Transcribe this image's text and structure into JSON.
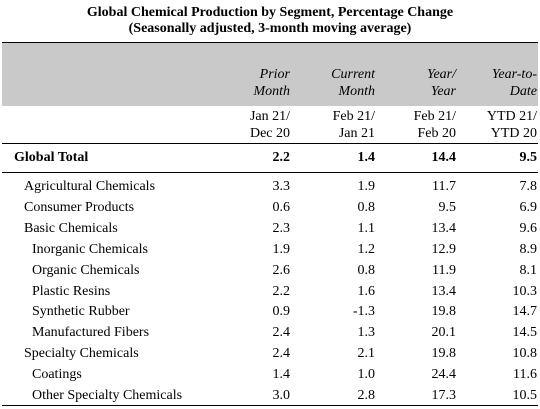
{
  "title_line1": "Global Chemical Production by Segment, Percentage Change",
  "title_line2": "(Seasonally adjusted, 3-month moving average)",
  "columns": [
    {
      "head1": "Prior",
      "head2": "Month",
      "date1": "Jan 21/",
      "date2": "Dec 20"
    },
    {
      "head1": "Current",
      "head2": "Month",
      "date1": "Feb 21/",
      "date2": "Jan 21"
    },
    {
      "head1": "Year/",
      "head2": "Year",
      "date1": "Feb 21/",
      "date2": "Feb 20"
    },
    {
      "head1": "Year-to-",
      "head2": "Date",
      "date1": "YTD 21/",
      "date2": "YTD 20"
    }
  ],
  "total": {
    "label": "Global Total",
    "values": [
      "2.2",
      "1.4",
      "14.4",
      "9.5"
    ]
  },
  "rows": [
    {
      "label": "Agricultural Chemicals",
      "values": [
        "3.3",
        "1.9",
        "11.7",
        "7.8"
      ],
      "indent": 1
    },
    {
      "label": "Consumer Products",
      "values": [
        "0.6",
        "0.8",
        "9.5",
        "6.9"
      ],
      "indent": 1
    },
    {
      "label": "Basic Chemicals",
      "values": [
        "2.3",
        "1.1",
        "13.4",
        "9.6"
      ],
      "indent": 1
    },
    {
      "label": "Inorganic Chemicals",
      "values": [
        "1.9",
        "1.2",
        "12.9",
        "8.9"
      ],
      "indent": 2
    },
    {
      "label": "Organic Chemicals",
      "values": [
        "2.6",
        "0.8",
        "11.9",
        "8.1"
      ],
      "indent": 2
    },
    {
      "label": "Plastic Resins",
      "values": [
        "2.2",
        "1.6",
        "13.4",
        "10.3"
      ],
      "indent": 2
    },
    {
      "label": "Synthetic Rubber",
      "values": [
        "0.9",
        "-1.3",
        "19.8",
        "14.7"
      ],
      "indent": 2
    },
    {
      "label": "Manufactured Fibers",
      "values": [
        "2.4",
        "1.3",
        "20.1",
        "14.5"
      ],
      "indent": 2
    },
    {
      "label": "Specialty Chemicals",
      "values": [
        "2.4",
        "2.1",
        "19.8",
        "10.8"
      ],
      "indent": 1
    },
    {
      "label": "Coatings",
      "values": [
        "1.4",
        "1.0",
        "24.4",
        "11.6"
      ],
      "indent": 2
    },
    {
      "label": "Other Specialty Chemicals",
      "values": [
        "3.0",
        "2.8",
        "17.3",
        "10.5"
      ],
      "indent": 2
    }
  ]
}
